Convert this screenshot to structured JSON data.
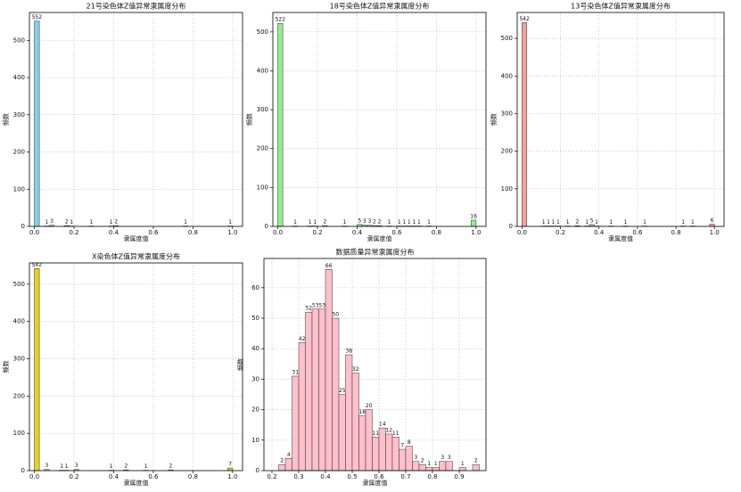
{
  "chart_data": [
    {
      "type": "histogram",
      "title": "21号染色体Z值异常隶属度分布",
      "x_label": "隶属度值",
      "y_label": "频数",
      "color": "#87ceeb",
      "bins": [
        0,
        0.025,
        0.05,
        0.075,
        0.1,
        0.125,
        0.15,
        0.175,
        0.2,
        0.225,
        0.25,
        0.275,
        0.3,
        0.325,
        0.35,
        0.375,
        0.4,
        0.425,
        0.45,
        0.475,
        0.5,
        0.525,
        0.55,
        0.575,
        0.6,
        0.625,
        0.65,
        0.675,
        0.7,
        0.725,
        0.75,
        0.775,
        0.8,
        0.825,
        0.85,
        0.875,
        0.9,
        0.925,
        0.95,
        0.975,
        1
      ],
      "values": [
        552,
        0,
        1,
        3,
        0,
        0,
        2,
        1,
        0,
        0,
        0,
        1,
        0,
        0,
        0,
        1,
        2,
        0,
        0,
        0,
        0,
        0,
        0,
        0,
        0,
        0,
        0,
        0,
        0,
        0,
        1,
        0,
        0,
        0,
        0,
        0,
        0,
        0,
        0,
        1
      ],
      "xlim": [
        -0.025,
        1.05
      ],
      "xticks": [
        {
          "value": 0,
          "label": "0.0"
        },
        0.2,
        0.4,
        0.6,
        0.8,
        {
          "value": 1,
          "label": "1.0"
        }
      ],
      "ylim": [
        0,
        575
      ],
      "yticks": [
        0,
        100,
        200,
        300,
        400,
        500
      ],
      "grid": true
    },
    {
      "type": "histogram",
      "title": "18号染色体Z值异常隶属度分布",
      "x_label": "隶属度值",
      "y_label": "频数",
      "color": "#90ee90",
      "bins": [
        0,
        0.025,
        0.05,
        0.075,
        0.1,
        0.125,
        0.15,
        0.175,
        0.2,
        0.225,
        0.25,
        0.275,
        0.3,
        0.325,
        0.35,
        0.375,
        0.4,
        0.425,
        0.45,
        0.475,
        0.5,
        0.525,
        0.55,
        0.575,
        0.6,
        0.625,
        0.65,
        0.675,
        0.7,
        0.725,
        0.75,
        0.775,
        0.8,
        0.825,
        0.85,
        0.875,
        0.9,
        0.925,
        0.95,
        0.975,
        1
      ],
      "values": [
        522,
        0,
        0,
        1,
        0,
        0,
        1,
        1,
        0,
        2,
        0,
        0,
        0,
        1,
        0,
        0,
        5,
        3,
        3,
        2,
        2,
        0,
        1,
        0,
        1,
        1,
        1,
        1,
        1,
        0,
        1,
        0,
        0,
        0,
        0,
        0,
        0,
        0,
        0,
        16
      ],
      "xlim": [
        -0.025,
        1.05
      ],
      "xticks": [
        {
          "value": 0,
          "label": "0.0"
        },
        0.2,
        0.4,
        0.6,
        0.8,
        {
          "value": 1,
          "label": "1.0"
        }
      ],
      "ylim": [
        0,
        550
      ],
      "yticks": [
        0,
        100,
        200,
        300,
        400,
        500
      ],
      "grid": true
    },
    {
      "type": "histogram",
      "title": "13号染色体Z值异常隶属度分布",
      "x_label": "隶属度值",
      "y_label": "频数",
      "color": "#f4a09a",
      "bins": [
        0,
        0.025,
        0.05,
        0.075,
        0.1,
        0.125,
        0.15,
        0.175,
        0.2,
        0.225,
        0.25,
        0.275,
        0.3,
        0.325,
        0.35,
        0.375,
        0.4,
        0.425,
        0.45,
        0.475,
        0.5,
        0.525,
        0.55,
        0.575,
        0.6,
        0.625,
        0.65,
        0.675,
        0.7,
        0.725,
        0.75,
        0.775,
        0.8,
        0.825,
        0.85,
        0.875,
        0.9,
        0.925,
        0.95,
        0.975,
        1
      ],
      "values": [
        542,
        0,
        0,
        0,
        1,
        1,
        1,
        1,
        0,
        1,
        0,
        2,
        0,
        1,
        5,
        1,
        0,
        0,
        1,
        0,
        0,
        1,
        0,
        0,
        0,
        1,
        0,
        0,
        0,
        0,
        0,
        0,
        0,
        1,
        0,
        1,
        0,
        0,
        0,
        6
      ],
      "xlim": [
        -0.025,
        1.05
      ],
      "xticks": [
        {
          "value": 0,
          "label": "0.0"
        },
        0.2,
        0.4,
        0.6,
        0.8,
        {
          "value": 1,
          "label": "1.0"
        }
      ],
      "ylim": [
        0,
        569
      ],
      "yticks": [
        0,
        100,
        200,
        300,
        400,
        500
      ],
      "grid": true
    },
    {
      "type": "histogram",
      "title": "X染色体Z值异常隶属度分布",
      "x_label": "隶属度值",
      "y_label": "频数",
      "color": "#e6d21e",
      "bins": [
        0,
        0.025,
        0.05,
        0.075,
        0.1,
        0.125,
        0.15,
        0.175,
        0.2,
        0.225,
        0.25,
        0.275,
        0.3,
        0.325,
        0.35,
        0.375,
        0.4,
        0.425,
        0.45,
        0.475,
        0.5,
        0.525,
        0.55,
        0.575,
        0.6,
        0.625,
        0.65,
        0.675,
        0.7,
        0.725,
        0.75,
        0.775,
        0.8,
        0.825,
        0.85,
        0.875,
        0.9,
        0.925,
        0.95,
        0.975,
        1
      ],
      "values": [
        542,
        0,
        3,
        0,
        0,
        1,
        1,
        0,
        3,
        0,
        0,
        0,
        0,
        0,
        0,
        1,
        0,
        0,
        2,
        0,
        0,
        0,
        1,
        0,
        0,
        0,
        0,
        2,
        0,
        0,
        0,
        0,
        0,
        0,
        0,
        0,
        0,
        0,
        0,
        7
      ],
      "xlim": [
        -0.025,
        1.05
      ],
      "xticks": [
        {
          "value": 0,
          "label": "0.0"
        },
        0.2,
        0.4,
        0.6,
        0.8,
        {
          "value": 1,
          "label": "1.0"
        }
      ],
      "ylim": [
        0,
        557
      ],
      "yticks": [
        0,
        100,
        200,
        300,
        400,
        500
      ],
      "grid": true
    },
    {
      "type": "histogram",
      "title": "数据质量异常隶属度分布",
      "x_label": "隶属度值",
      "y_label": "频数",
      "color": "#ffc0cb",
      "bins": [
        0.225,
        0.25,
        0.275,
        0.3,
        0.325,
        0.35,
        0.375,
        0.4,
        0.425,
        0.45,
        0.475,
        0.5,
        0.525,
        0.55,
        0.575,
        0.6,
        0.625,
        0.65,
        0.675,
        0.7,
        0.725,
        0.75,
        0.775,
        0.8,
        0.825,
        0.85,
        0.875,
        0.9,
        0.925,
        0.95,
        0.975
      ],
      "values": [
        2,
        4,
        31,
        42,
        52,
        53,
        53,
        66,
        50,
        25,
        38,
        32,
        18,
        20,
        11,
        14,
        12,
        11,
        7,
        8,
        3,
        2,
        1,
        1,
        3,
        3,
        0,
        1,
        0,
        2
      ],
      "xlim": [
        0.17,
        1.0
      ],
      "xticks": [
        0.2,
        0.3,
        0.4,
        0.5,
        0.6,
        0.7,
        0.8,
        0.9
      ],
      "ylim": [
        0,
        69.6
      ],
      "yticks": [
        0,
        10,
        20,
        30,
        40,
        50,
        60
      ],
      "grid": true
    }
  ]
}
